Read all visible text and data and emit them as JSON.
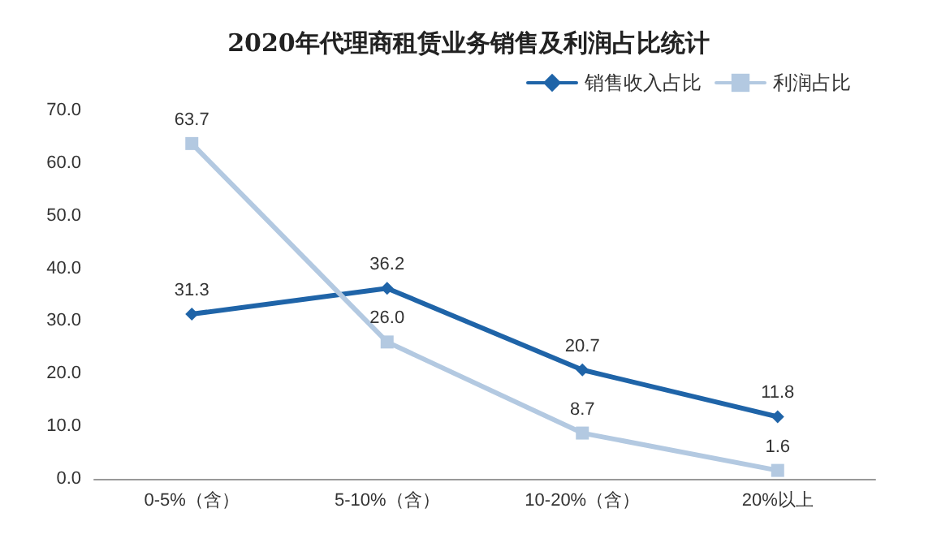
{
  "chart_data": {
    "type": "line",
    "title": "2020年代理商租赁业务销售及利润占比统计",
    "categories": [
      "0-5%（含）",
      "5-10%（含）",
      "10-20%（含）",
      "20%以上"
    ],
    "series": [
      {
        "name": "销售收入占比",
        "color": "#1f64a8",
        "marker": "diamond",
        "values": [
          31.3,
          36.2,
          20.7,
          11.8
        ],
        "value_labels": [
          "31.3",
          "36.2",
          "20.7",
          "11.8"
        ]
      },
      {
        "name": "利润占比",
        "color": "#b3c9e1",
        "marker": "square",
        "values": [
          63.7,
          26.0,
          8.7,
          1.6
        ],
        "value_labels": [
          "63.7",
          "26.0",
          "8.7",
          "1.6"
        ]
      }
    ],
    "ylim": [
      0,
      70
    ],
    "yticks": [
      {
        "value": 0,
        "label": "0.0"
      },
      {
        "value": 10,
        "label": "10.0"
      },
      {
        "value": 20,
        "label": "20.0"
      },
      {
        "value": 30,
        "label": "30.0"
      },
      {
        "value": 40,
        "label": "40.0"
      },
      {
        "value": 50,
        "label": "50.0"
      },
      {
        "value": 60,
        "label": "60.0"
      },
      {
        "value": 70,
        "label": "70.0"
      }
    ],
    "grid": false,
    "legend": "top right"
  }
}
